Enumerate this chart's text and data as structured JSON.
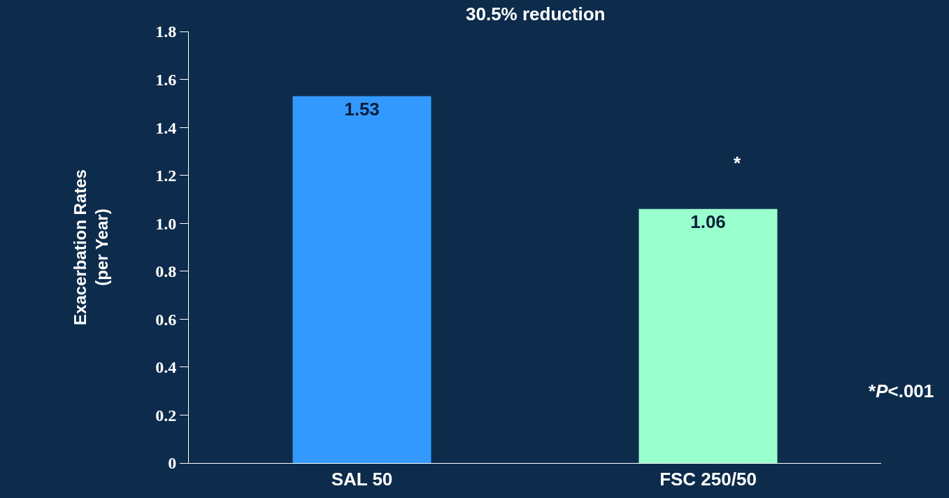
{
  "chart_data": {
    "type": "bar",
    "ylabel": "Exacerbation Rates\n(per Year)",
    "categories": [
      "SAL 50",
      "FSC 250/50"
    ],
    "values": [
      1.53,
      1.06
    ],
    "colors": [
      "#3399ff",
      "#99ffcc"
    ],
    "data_labels": true,
    "ylim": [
      0,
      1.8
    ],
    "yticks": [
      0,
      0.2,
      0.4,
      0.6,
      0.8,
      {
        "value": 1,
        "label": "1.0"
      },
      1.2,
      1.4,
      1.6,
      1.8
    ],
    "grid": false,
    "annotations": [
      "30.5% reduction",
      "*",
      "*P<.001"
    ]
  }
}
